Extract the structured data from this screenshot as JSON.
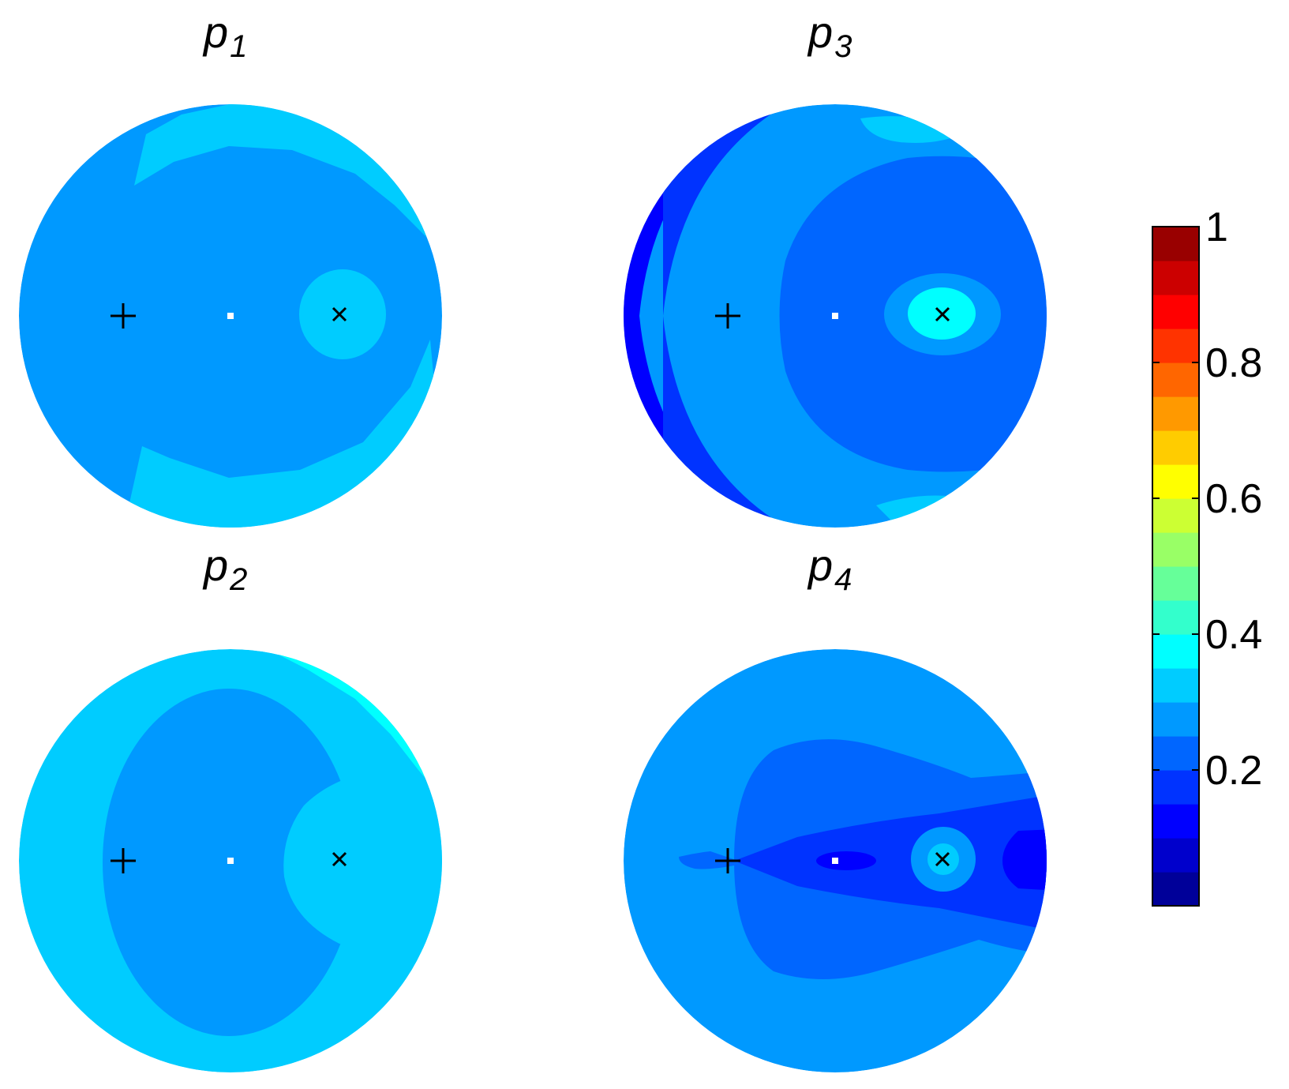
{
  "chart_data": {
    "type": "heatmap",
    "colormap": "jet",
    "levels": 20,
    "colorbar": {
      "range": [
        0,
        1
      ],
      "ticks": [
        0.2,
        0.4,
        0.6,
        0.8,
        1
      ],
      "tick_labels": [
        "0.2",
        "0.4",
        "0.6",
        "0.8",
        "1"
      ],
      "placement": "right"
    },
    "panels": [
      {
        "id": "p1",
        "title_base": "p",
        "title_sub": "1",
        "background_value": 0.25,
        "regions": [
          {
            "shape": "crescent-top",
            "value": 0.32
          },
          {
            "shape": "crescent-bottom",
            "value": 0.32
          },
          {
            "shape": "blob-around-x-marker",
            "value": 0.32
          }
        ],
        "markers": [
          "plus",
          "dot",
          "cross"
        ]
      },
      {
        "id": "p2",
        "title_base": "p",
        "title_sub": "2",
        "background_value": 0.32,
        "regions": [
          {
            "shape": "central-disc",
            "value": 0.25
          },
          {
            "shape": "notch-around-x-marker",
            "value": 0.32
          },
          {
            "shape": "upper-right-edge",
            "value": 0.37
          }
        ],
        "markers": [
          "plus",
          "dot",
          "cross"
        ]
      },
      {
        "id": "p3",
        "title_base": "p",
        "title_sub": "3",
        "background_value": 0.25,
        "regions": [
          {
            "shape": "left-rim",
            "value": 0.12
          },
          {
            "shape": "left-rim-outer",
            "value": 0.17
          },
          {
            "shape": "right-disc",
            "value": 0.2
          },
          {
            "shape": "ring-around-x-marker",
            "value": 0.27
          },
          {
            "shape": "core-at-x-marker",
            "value": 0.35
          },
          {
            "shape": "top-edge-patch",
            "value": 0.32
          },
          {
            "shape": "bottom-edge-patch",
            "value": 0.32
          }
        ],
        "markers": [
          "plus",
          "dot",
          "cross"
        ]
      },
      {
        "id": "p4",
        "title_base": "p",
        "title_sub": "4",
        "background_value": 0.27,
        "regions": [
          {
            "shape": "inner-butterfly",
            "value": 0.2
          },
          {
            "shape": "axis-wedge",
            "value": 0.15
          },
          {
            "shape": "center-lobe",
            "value": 0.1
          },
          {
            "shape": "right-edge-lobe",
            "value": 0.1
          },
          {
            "shape": "left-axis-tail",
            "value": 0.2
          },
          {
            "shape": "ring-around-x-marker",
            "value": 0.27
          },
          {
            "shape": "core-at-x-marker",
            "value": 0.32
          }
        ],
        "markers": [
          "plus",
          "dot",
          "cross"
        ]
      }
    ]
  }
}
